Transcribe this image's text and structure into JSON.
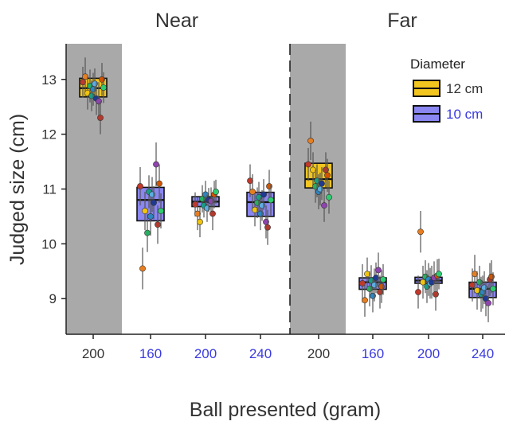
{
  "chart_data": {
    "type": "box",
    "panel_titles": [
      "Near",
      "Far"
    ],
    "xlabel": "Ball presented (gram)",
    "ylabel": "Judged size (cm)",
    "ylim": [
      8.35,
      13.65
    ],
    "yticks": [
      9,
      10,
      11,
      12,
      13
    ],
    "legend": {
      "title": "Diameter",
      "position": "top-right",
      "entries": [
        {
          "label": "12 cm",
          "fill": "#f2c51f",
          "text_color": "#333333"
        },
        {
          "label": "10 cm",
          "fill": "#8a86f2",
          "text_color": "#3a3ae0"
        }
      ]
    },
    "colors": {
      "shaded_background": "#a9a9a9",
      "box_12cm": "#f2c51f",
      "box_10cm": "#8a86f2",
      "label_12cm": "#333333",
      "label_10cm": "#3a3ae0"
    },
    "groups": [
      {
        "panel": "Near",
        "category": "200",
        "diameter": "12 cm",
        "shaded": true,
        "box": {
          "q1": 12.68,
          "median": 12.84,
          "q3": 13.02,
          "whisker_low": 12.68,
          "whisker_high": 13.02
        }
      },
      {
        "panel": "Near",
        "category": "160",
        "diameter": "10 cm",
        "shaded": false,
        "box": {
          "q1": 10.42,
          "median": 10.8,
          "q3": 11.03,
          "whisker_low": 10.42,
          "whisker_high": 11.03
        }
      },
      {
        "panel": "Near",
        "category": "200",
        "diameter": "10 cm",
        "shaded": false,
        "box": {
          "q1": 10.68,
          "median": 10.77,
          "q3": 10.86,
          "whisker_low": 10.68,
          "whisker_high": 10.86
        }
      },
      {
        "panel": "Near",
        "category": "240",
        "diameter": "10 cm",
        "shaded": false,
        "box": {
          "q1": 10.5,
          "median": 10.76,
          "q3": 10.94,
          "whisker_low": 10.5,
          "whisker_high": 10.94
        }
      },
      {
        "panel": "Far",
        "category": "200",
        "diameter": "12 cm",
        "shaded": true,
        "box": {
          "q1": 11.02,
          "median": 11.18,
          "q3": 11.47,
          "whisker_low": 11.02,
          "whisker_high": 11.47
        }
      },
      {
        "panel": "Far",
        "category": "160",
        "diameter": "10 cm",
        "shaded": false,
        "box": {
          "q1": 9.17,
          "median": 9.3,
          "q3": 9.38,
          "whisker_low": 9.17,
          "whisker_high": 9.38
        }
      },
      {
        "panel": "Far",
        "category": "200",
        "diameter": "10 cm",
        "shaded": false,
        "box": {
          "q1": 9.28,
          "median": 9.33,
          "q3": 9.39,
          "whisker_low": 9.28,
          "whisker_high": 9.39
        }
      },
      {
        "panel": "Far",
        "category": "240",
        "diameter": "10 cm",
        "shaded": false,
        "box": {
          "q1": 9.02,
          "median": 9.18,
          "q3": 9.3,
          "whisker_low": 9.02,
          "whisker_high": 9.3
        }
      }
    ],
    "subjects": [
      {
        "color": "#c0392b",
        "values": [
          12.95,
          11.05,
          10.72,
          11.15,
          11.45,
          9.28,
          9.12,
          9.25
        ],
        "ci": [
          0.28,
          0.35,
          0.22,
          0.3,
          0.3,
          0.35,
          0.3,
          0.3
        ]
      },
      {
        "color": "#e67e22",
        "values": [
          13.05,
          9.55,
          10.55,
          10.95,
          11.88,
          8.97,
          10.22,
          9.45
        ],
        "ci": [
          0.35,
          0.38,
          0.3,
          0.32,
          0.35,
          0.3,
          0.38,
          0.35
        ]
      },
      {
        "color": "#f1c40f",
        "values": [
          12.75,
          10.6,
          10.4,
          10.62,
          11.35,
          9.45,
          9.3,
          9.15
        ],
        "ci": [
          0.3,
          0.35,
          0.28,
          0.3,
          0.32,
          0.3,
          0.3,
          0.35
        ]
      },
      {
        "color": "#27ae60",
        "values": [
          12.88,
          10.2,
          10.82,
          10.75,
          11.05,
          9.18,
          9.4,
          9.3
        ],
        "ci": [
          0.3,
          0.35,
          0.25,
          0.28,
          0.3,
          0.32,
          0.3,
          0.3
        ]
      },
      {
        "color": "#16a085",
        "values": [
          12.7,
          10.95,
          10.7,
          10.85,
          11.15,
          9.33,
          9.22,
          9.08
        ],
        "ci": [
          0.28,
          0.3,
          0.22,
          0.28,
          0.3,
          0.28,
          0.3,
          0.32
        ]
      },
      {
        "color": "#2e86c1",
        "values": [
          12.82,
          10.5,
          10.9,
          10.55,
          10.95,
          9.05,
          9.35,
          9.12
        ],
        "ci": [
          0.3,
          0.35,
          0.25,
          0.3,
          0.32,
          0.3,
          0.3,
          0.3
        ]
      },
      {
        "color": "#5dade2",
        "values": [
          12.92,
          10.9,
          10.65,
          10.7,
          11.0,
          9.25,
          9.28,
          9.2
        ],
        "ci": [
          0.28,
          0.32,
          0.25,
          0.28,
          0.3,
          0.3,
          0.28,
          0.3
        ]
      },
      {
        "color": "#1f3a93",
        "values": [
          12.65,
          10.75,
          10.8,
          10.9,
          11.1,
          9.38,
          9.3,
          9.0
        ],
        "ci": [
          0.3,
          0.3,
          0.22,
          0.28,
          0.3,
          0.28,
          0.3,
          0.32
        ]
      },
      {
        "color": "#8e44ad",
        "values": [
          12.6,
          11.45,
          10.78,
          10.4,
          10.7,
          9.52,
          9.38,
          8.92
        ],
        "ci": [
          0.35,
          0.4,
          0.25,
          0.3,
          0.3,
          0.32,
          0.3,
          0.35
        ]
      },
      {
        "color": "#b03a2e",
        "values": [
          12.3,
          10.35,
          10.55,
          10.3,
          11.35,
          9.12,
          9.08,
          9.35
        ],
        "ci": [
          0.3,
          0.35,
          0.3,
          0.32,
          0.32,
          0.3,
          0.3,
          0.3
        ]
      },
      {
        "color": "#d35400",
        "values": [
          13.0,
          11.1,
          10.9,
          11.05,
          11.25,
          9.22,
          9.42,
          9.4
        ],
        "ci": [
          0.3,
          0.35,
          0.25,
          0.3,
          0.3,
          0.3,
          0.3,
          0.3
        ]
      },
      {
        "color": "#2ecc71",
        "values": [
          12.85,
          10.6,
          10.95,
          10.8,
          10.85,
          9.35,
          9.45,
          9.18
        ],
        "ci": [
          0.28,
          0.32,
          0.22,
          0.28,
          0.3,
          0.28,
          0.28,
          0.3
        ]
      }
    ],
    "ticks_x": [
      {
        "label": "200",
        "color": "#333333"
      },
      {
        "label": "160",
        "color": "#3a3ae0"
      },
      {
        "label": "200",
        "color": "#3a3ae0"
      },
      {
        "label": "240",
        "color": "#3a3ae0"
      },
      {
        "label": "200",
        "color": "#333333"
      },
      {
        "label": "160",
        "color": "#3a3ae0"
      },
      {
        "label": "200",
        "color": "#3a3ae0"
      },
      {
        "label": "240",
        "color": "#3a3ae0"
      }
    ]
  }
}
